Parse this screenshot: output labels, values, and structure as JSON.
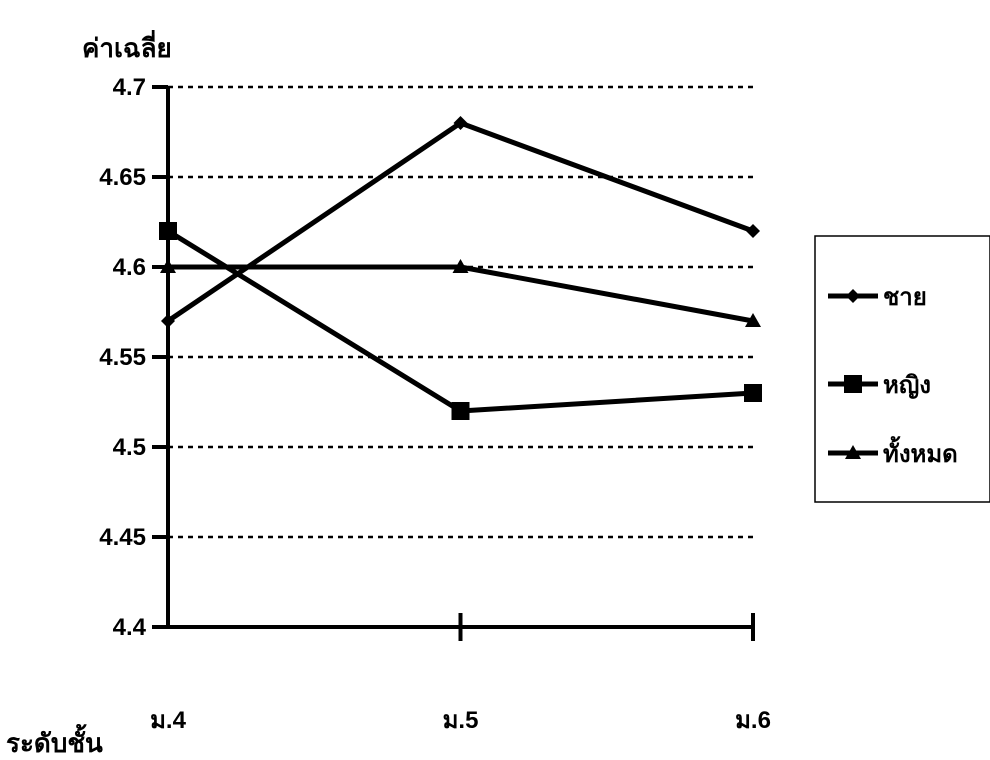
{
  "chart_data": {
    "type": "line",
    "ylabel": "ค่าเฉลี่ย",
    "xlabel": "ระดับชั้น",
    "categories": [
      "ม.4",
      "ม.5",
      "ม.6"
    ],
    "ylim": [
      4.4,
      4.7
    ],
    "yticks": [
      "4.7",
      "4.65",
      "4.6",
      "4.55",
      "4.5",
      "4.45",
      "4.4"
    ],
    "ytick_values": [
      4.7,
      4.65,
      4.6,
      4.55,
      4.5,
      4.45,
      4.4
    ],
    "grid": "horizontal dotted",
    "legend_position": "right",
    "series": [
      {
        "name": "ชาย",
        "marker": "diamond",
        "values": [
          4.57,
          4.68,
          4.62
        ]
      },
      {
        "name": "หญิง",
        "marker": "square",
        "values": [
          4.62,
          4.52,
          4.53
        ]
      },
      {
        "name": "ทั้งหมด",
        "marker": "triangle",
        "values": [
          4.6,
          4.6,
          4.57
        ]
      }
    ],
    "colors": {
      "line": "#000000",
      "background": "#ffffff"
    }
  }
}
